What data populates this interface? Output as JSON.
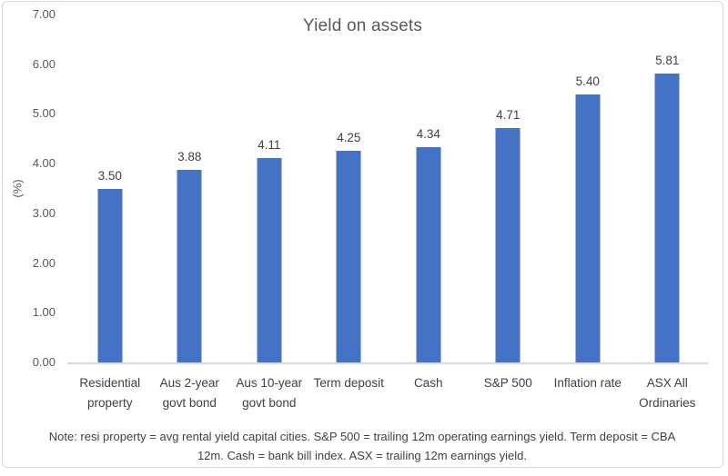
{
  "chart_data": {
    "type": "bar",
    "title": "Yield on assets",
    "categories": [
      "Residential property",
      "Aus 2-year govt bond",
      "Aus 10-year govt bond",
      "Term deposit",
      "Cash",
      "S&P 500",
      "Inflation rate",
      "ASX All Ordinaries"
    ],
    "values": [
      3.5,
      3.88,
      4.11,
      4.25,
      4.34,
      4.71,
      5.4,
      5.81
    ],
    "value_labels": [
      "3.50",
      "3.88",
      "4.11",
      "4.25",
      "4.34",
      "4.71",
      "5.40",
      "5.81"
    ],
    "xlabel": "",
    "ylabel": "(%)",
    "ylim": [
      0,
      7
    ],
    "ytick_labels": [
      "0.00",
      "1.00",
      "2.00",
      "3.00",
      "4.00",
      "5.00",
      "6.00",
      "7.00"
    ],
    "grid": false,
    "legend": "none",
    "bar_color": "#4472c4",
    "axis_color": "#d9d9d9",
    "title_color": "#595959",
    "label_color": "#404040",
    "note": "Note: resi property = avg rental yield capital cities. S&P 500 = trailing 12m operating earnings yield. Term deposit = CBA 12m. Cash = bank bill index. ASX = trailing 12m earnings yield."
  }
}
